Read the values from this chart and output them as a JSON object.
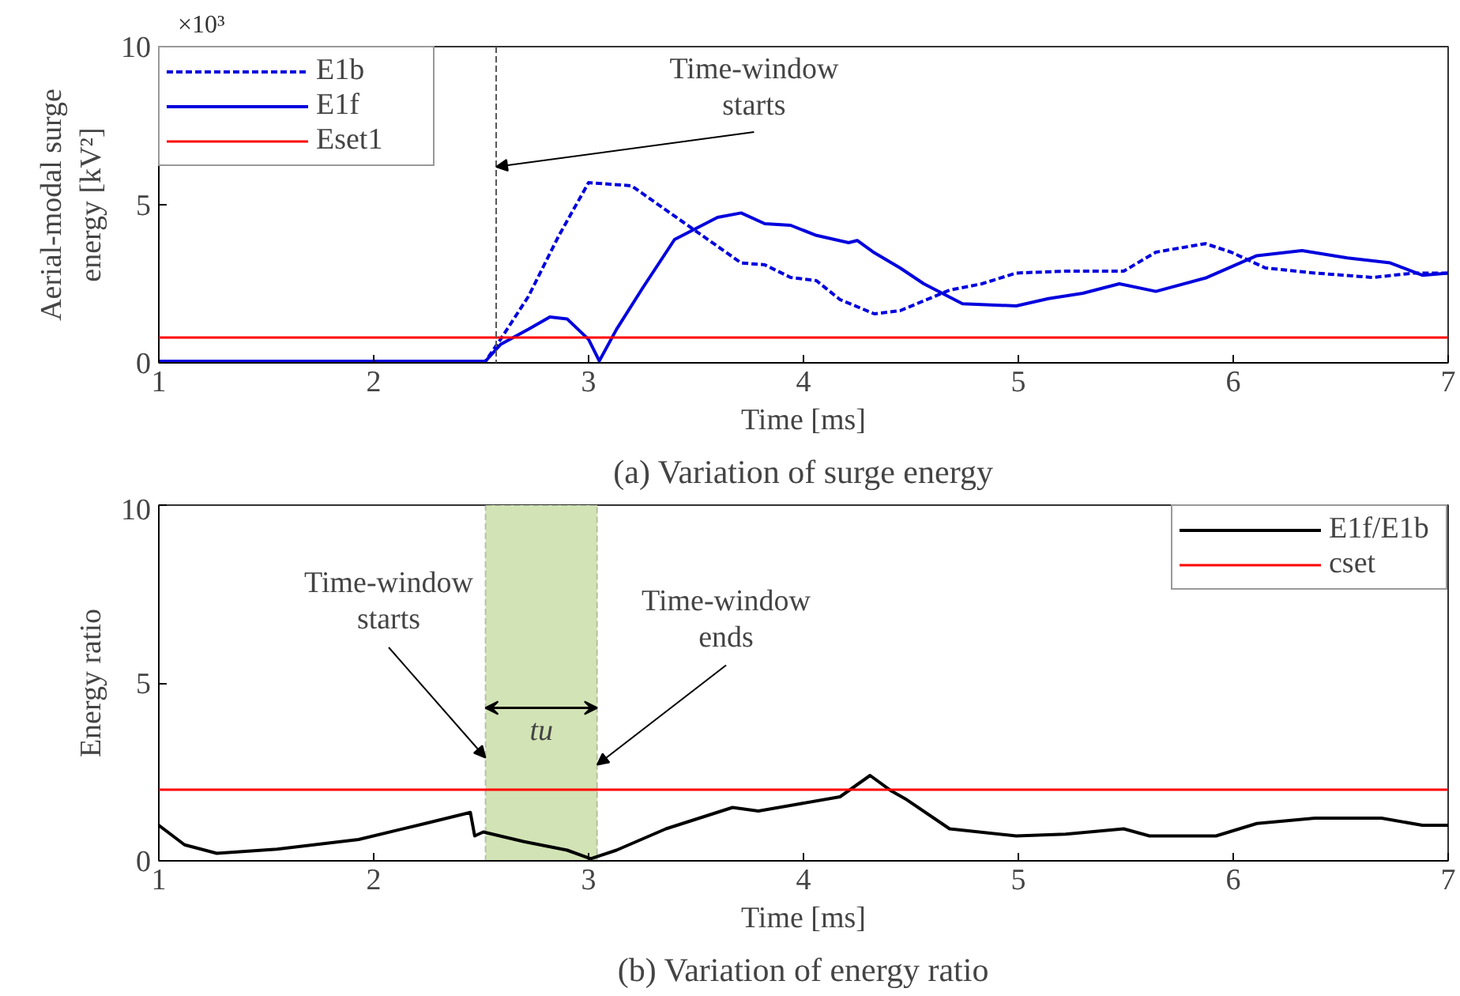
{
  "chart_data": [
    {
      "type": "line",
      "title": "(a) Variation of surge energy",
      "xlabel": "Time [ms]",
      "ylabel": "Aerial-modal surge energy [kV²]",
      "xlim": [
        1,
        7
      ],
      "xticks": [
        1,
        2,
        3,
        4,
        5,
        6,
        7
      ],
      "ylim": [
        0,
        10
      ],
      "yticks": [
        0,
        5,
        10
      ],
      "grid": false,
      "legend": "top left",
      "series": [
        {
          "name": "E1b",
          "color": "#0000dd",
          "line_style": "dashed",
          "x": [
            1.0,
            2.0,
            2.52,
            2.59,
            2.72,
            2.86,
            3.0,
            3.2,
            3.44,
            3.71,
            3.82,
            3.94,
            4.06,
            4.17,
            4.33,
            4.45,
            4.68,
            4.83,
            4.99,
            5.22,
            5.49,
            5.64,
            5.87,
            5.99,
            6.15,
            6.38,
            6.65,
            6.84,
            7.0
          ],
          "values": [
            0.05,
            0.05,
            0.05,
            0.74,
            2.1,
            4.0,
            5.7,
            5.6,
            4.45,
            3.16,
            3.1,
            2.7,
            2.6,
            2.0,
            1.55,
            1.65,
            2.3,
            2.5,
            2.84,
            2.9,
            2.9,
            3.5,
            3.77,
            3.5,
            3.0,
            2.84,
            2.7,
            2.84,
            2.84
          ]
        },
        {
          "name": "E1f",
          "color": "#0000dd",
          "line_style": "solid",
          "x": [
            1.0,
            2.0,
            2.52,
            2.59,
            2.72,
            2.82,
            2.9,
            3.0,
            3.05,
            3.13,
            3.25,
            3.4,
            3.6,
            3.71,
            3.82,
            3.94,
            4.06,
            4.21,
            4.25,
            4.33,
            4.45,
            4.56,
            4.74,
            4.99,
            5.14,
            5.3,
            5.47,
            5.64,
            5.87,
            6.11,
            6.32,
            6.53,
            6.73,
            6.88,
            7.0
          ],
          "values": [
            0.05,
            0.05,
            0.05,
            0.58,
            1.06,
            1.45,
            1.39,
            0.74,
            0.06,
            1.06,
            2.35,
            3.9,
            4.6,
            4.74,
            4.4,
            4.35,
            4.03,
            3.8,
            3.87,
            3.48,
            3.0,
            2.5,
            1.87,
            1.8,
            2.03,
            2.2,
            2.5,
            2.26,
            2.68,
            3.39,
            3.55,
            3.32,
            3.16,
            2.77,
            2.84
          ]
        }
      ],
      "ref_lines": [
        {
          "axis": "y",
          "value": 0.8,
          "label": "Eset1",
          "color": "#ff0000",
          "line_style": "solid"
        },
        {
          "axis": "x",
          "value": 2.57,
          "color": "#555555",
          "line_style": "dashed"
        }
      ],
      "annotations": [
        "×10³",
        {
          "text": "Time-window starts",
          "x": 2.57,
          "y": 6.2
        }
      ]
    },
    {
      "type": "line",
      "title": "(b) Variation of energy ratio",
      "xlabel": "Time [ms]",
      "ylabel": "Energy ratio",
      "xlim": [
        1,
        7
      ],
      "xticks": [
        1,
        2,
        3,
        4,
        5,
        6,
        7
      ],
      "ylim": [
        0,
        10
      ],
      "yticks": [
        0,
        5,
        10
      ],
      "grid": false,
      "legend": "top right",
      "series": [
        {
          "name": "E1f/E1b",
          "color": "#000000",
          "line_style": "solid",
          "x": [
            1.0,
            1.12,
            1.27,
            1.55,
            1.93,
            2.24,
            2.45,
            2.47,
            2.51,
            2.7,
            2.9,
            3.01,
            3.13,
            3.36,
            3.67,
            3.79,
            3.98,
            4.17,
            4.31,
            4.41,
            4.48,
            4.68,
            4.99,
            5.22,
            5.49,
            5.61,
            5.92,
            6.11,
            6.38,
            6.69,
            6.88,
            7.0
          ],
          "values": [
            1.0,
            0.45,
            0.21,
            0.33,
            0.6,
            1.05,
            1.36,
            0.7,
            0.81,
            0.54,
            0.3,
            0.06,
            0.3,
            0.9,
            1.5,
            1.4,
            1.6,
            1.8,
            2.4,
            1.96,
            1.72,
            0.9,
            0.7,
            0.75,
            0.9,
            0.7,
            0.7,
            1.05,
            1.2,
            1.2,
            1.0,
            1.0
          ]
        }
      ],
      "ref_lines": [
        {
          "axis": "y",
          "value": 2.0,
          "label": "cset",
          "color": "#ff0000",
          "line_style": "solid"
        }
      ],
      "bands": [
        {
          "axis": "x",
          "from": 2.52,
          "to": 3.04,
          "label": "tu",
          "color": "#d2e3b5"
        }
      ],
      "annotations": [
        {
          "text": "Time-window starts",
          "x": 2.52,
          "y": 2.9
        },
        {
          "text": "Time-window ends",
          "x": 3.04,
          "y": 2.7
        }
      ]
    }
  ]
}
